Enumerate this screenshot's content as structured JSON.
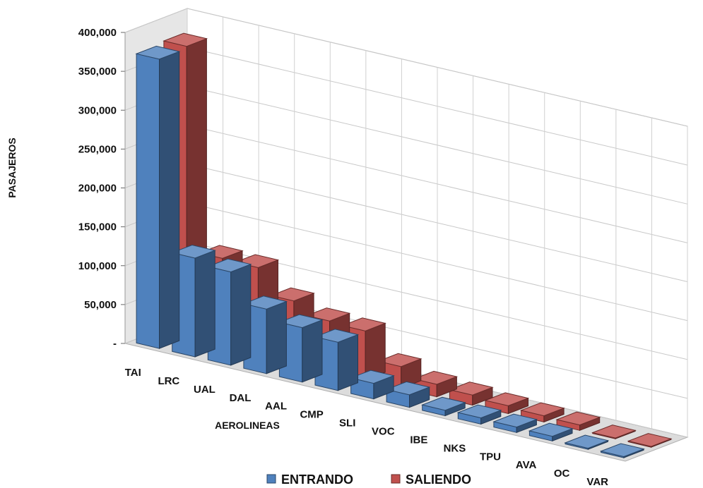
{
  "chart_data": {
    "type": "bar",
    "variant": "3d-column",
    "title": "",
    "xlabel": "AEROLINEAS",
    "ylabel": "PASAJEROS",
    "ylim": [
      0,
      400000
    ],
    "yticks": [
      "-",
      "50,000",
      "100,000",
      "150,000",
      "200,000",
      "250,000",
      "300,000",
      "350,000",
      "400,000"
    ],
    "grid": true,
    "legend_position": "bottom",
    "categories": [
      "TAI",
      "LRC",
      "UAL",
      "DAL",
      "AAL",
      "CMP",
      "SLI",
      "VOC",
      "IBE",
      "NKS",
      "TPU",
      "AVA",
      "OC",
      "VAR"
    ],
    "series": [
      {
        "name": "ENTRANDO",
        "color": "#4F81BD",
        "values": [
          372000,
          127000,
          120000,
          83000,
          70000,
          62000,
          20000,
          16000,
          7000,
          8000,
          7000,
          6000,
          1500,
          1500
        ]
      },
      {
        "name": "SALIENDO",
        "color": "#C0504D",
        "values": [
          375000,
          113000,
          112000,
          80000,
          65000,
          63000,
          28000,
          16000,
          13000,
          10000,
          8000,
          7000,
          1000,
          1000
        ]
      }
    ]
  }
}
